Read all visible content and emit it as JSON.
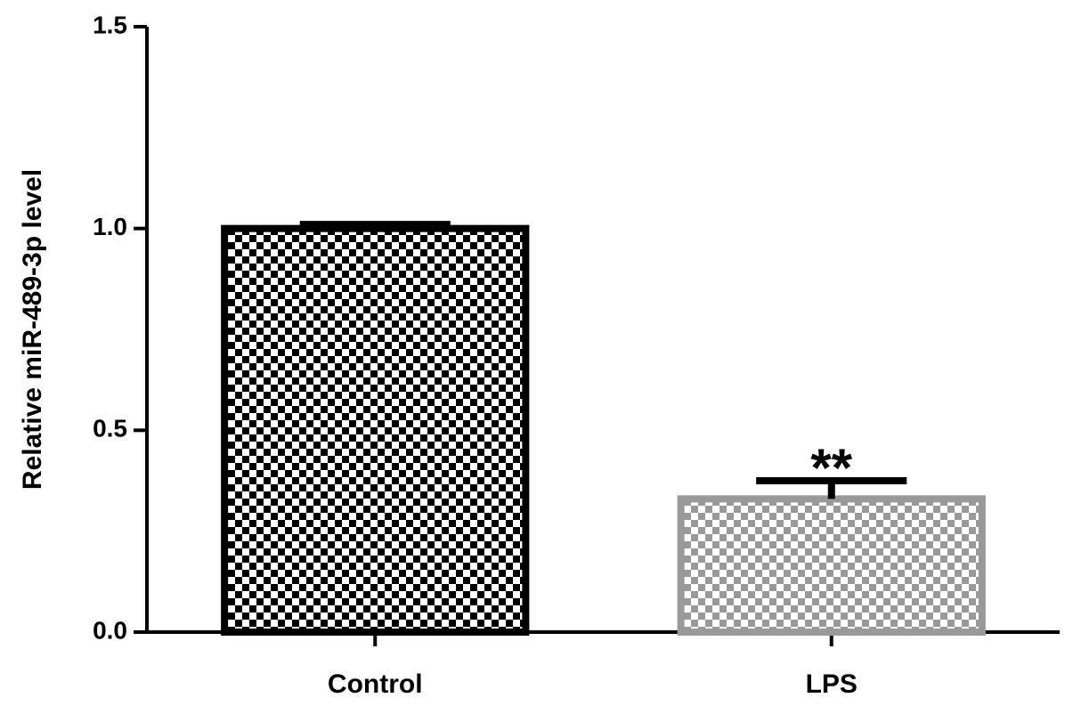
{
  "chart_data": {
    "type": "bar",
    "y_label": "Relative miR-489-3p level",
    "categories": [
      "Control",
      "LPS"
    ],
    "values": [
      1.0,
      0.33
    ],
    "errors": [
      0.01,
      0.045
    ],
    "colors": [
      "#000000",
      "#999999"
    ],
    "annotations": [
      {
        "text": "**",
        "x": "LPS"
      }
    ],
    "ylim": [
      0,
      1.5
    ],
    "yticks": [
      {
        "value": 0,
        "label": "0.0"
      },
      {
        "value": 0.5,
        "label": "0.5"
      },
      {
        "value": 1.0,
        "label": "1.0"
      },
      {
        "value": 1.5,
        "label": "1.5"
      }
    ],
    "grid": false
  }
}
